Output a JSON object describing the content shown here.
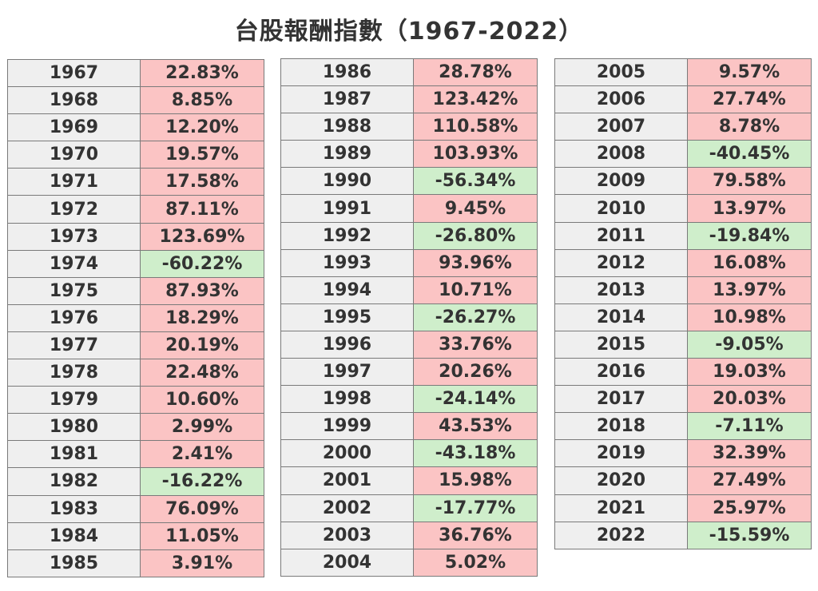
{
  "title": "台股報酬指數（1967-2022）",
  "colors": {
    "positive_fill": "#fbc4c4",
    "negative_fill": "#cfeecb",
    "year_fill": "#efefef"
  },
  "chart_data": {
    "type": "table",
    "title": "台股報酬指數（1967-2022）",
    "columns": [
      "year",
      "return"
    ],
    "blocks": [
      [
        [
          "1967",
          "22.83%"
        ],
        [
          "1968",
          "8.85%"
        ],
        [
          "1969",
          "12.20%"
        ],
        [
          "1970",
          "19.57%"
        ],
        [
          "1971",
          "17.58%"
        ],
        [
          "1972",
          "87.11%"
        ],
        [
          "1973",
          "123.69%"
        ],
        [
          "1974",
          "-60.22%"
        ],
        [
          "1975",
          "87.93%"
        ],
        [
          "1976",
          "18.29%"
        ],
        [
          "1977",
          "20.19%"
        ],
        [
          "1978",
          "22.48%"
        ],
        [
          "1979",
          "10.60%"
        ],
        [
          "1980",
          "2.99%"
        ],
        [
          "1981",
          "2.41%"
        ],
        [
          "1982",
          "-16.22%"
        ],
        [
          "1983",
          "76.09%"
        ],
        [
          "1984",
          "11.05%"
        ],
        [
          "1985",
          "3.91%"
        ]
      ],
      [
        [
          "1986",
          "28.78%"
        ],
        [
          "1987",
          "123.42%"
        ],
        [
          "1988",
          "110.58%"
        ],
        [
          "1989",
          "103.93%"
        ],
        [
          "1990",
          "-56.34%"
        ],
        [
          "1991",
          "9.45%"
        ],
        [
          "1992",
          "-26.80%"
        ],
        [
          "1993",
          "93.96%"
        ],
        [
          "1994",
          "10.71%"
        ],
        [
          "1995",
          "-26.27%"
        ],
        [
          "1996",
          "33.76%"
        ],
        [
          "1997",
          "20.26%"
        ],
        [
          "1998",
          "-24.14%"
        ],
        [
          "1999",
          "43.53%"
        ],
        [
          "2000",
          "-43.18%"
        ],
        [
          "2001",
          "15.98%"
        ],
        [
          "2002",
          "-17.77%"
        ],
        [
          "2003",
          "36.76%"
        ],
        [
          "2004",
          "5.02%"
        ]
      ],
      [
        [
          "2005",
          "9.57%"
        ],
        [
          "2006",
          "27.74%"
        ],
        [
          "2007",
          "8.78%"
        ],
        [
          "2008",
          "-40.45%"
        ],
        [
          "2009",
          "79.58%"
        ],
        [
          "2010",
          "13.97%"
        ],
        [
          "2011",
          "-19.84%"
        ],
        [
          "2012",
          "16.08%"
        ],
        [
          "2013",
          "13.97%"
        ],
        [
          "2014",
          "10.98%"
        ],
        [
          "2015",
          "-9.05%"
        ],
        [
          "2016",
          "19.03%"
        ],
        [
          "2017",
          "20.03%"
        ],
        [
          "2018",
          "-7.11%"
        ],
        [
          "2019",
          "32.39%"
        ],
        [
          "2020",
          "27.49%"
        ],
        [
          "2021",
          "25.97%"
        ],
        [
          "2022",
          "-15.59%"
        ]
      ]
    ]
  }
}
